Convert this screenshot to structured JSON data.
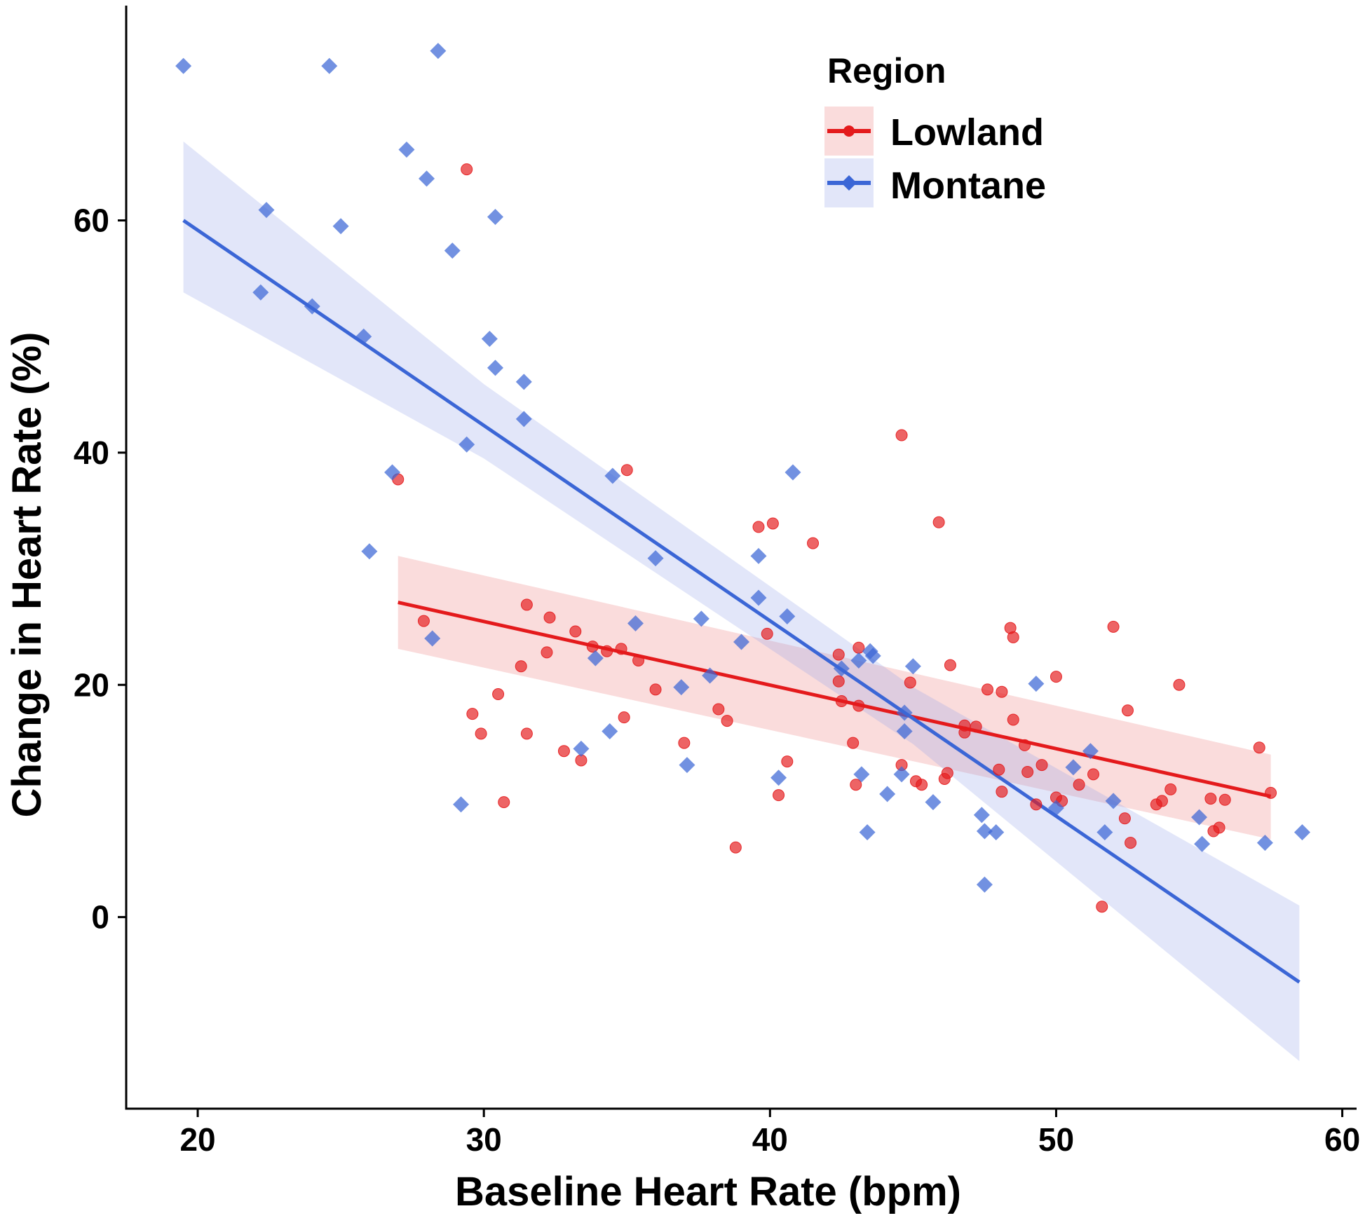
{
  "chart_data": {
    "type": "scatter",
    "title": "",
    "xlabel": "Baseline Heart Rate (bpm)",
    "ylabel": "Change in Heart Rate (%)",
    "xlim": [
      17.5,
      60.5
    ],
    "ylim": [
      -16.5,
      78.5
    ],
    "xticks": [
      20,
      30,
      40,
      50,
      60
    ],
    "yticks": [
      0,
      20,
      40,
      60
    ],
    "grid": false,
    "legend": {
      "title": "Region",
      "position": "top-right"
    },
    "series": [
      {
        "name": "Lowland",
        "color": "#E41A1C",
        "marker": "circle",
        "fit": {
          "x": [
            27.0,
            57.5
          ],
          "y": [
            27.1,
            10.4
          ]
        },
        "band": {
          "x": [
            27.0,
            57.5
          ],
          "lower": [
            23.1,
            6.7
          ],
          "upper": [
            31.1,
            14.0
          ]
        },
        "points": [
          [
            27.0,
            37.7
          ],
          [
            27.9,
            25.5
          ],
          [
            29.4,
            64.4
          ],
          [
            29.6,
            17.5
          ],
          [
            29.9,
            15.8
          ],
          [
            30.5,
            19.2
          ],
          [
            30.7,
            9.9
          ],
          [
            31.3,
            21.6
          ],
          [
            31.5,
            26.9
          ],
          [
            31.5,
            15.8
          ],
          [
            32.2,
            22.8
          ],
          [
            32.3,
            25.8
          ],
          [
            32.8,
            14.3
          ],
          [
            33.2,
            24.6
          ],
          [
            33.4,
            13.5
          ],
          [
            33.8,
            23.3
          ],
          [
            34.3,
            22.9
          ],
          [
            34.8,
            23.1
          ],
          [
            34.9,
            17.2
          ],
          [
            35.0,
            38.5
          ],
          [
            35.4,
            22.1
          ],
          [
            36.0,
            19.6
          ],
          [
            37.0,
            15.0
          ],
          [
            38.2,
            17.9
          ],
          [
            38.5,
            16.9
          ],
          [
            38.8,
            6.0
          ],
          [
            39.6,
            33.6
          ],
          [
            39.9,
            24.4
          ],
          [
            40.1,
            33.9
          ],
          [
            40.3,
            10.5
          ],
          [
            40.6,
            13.4
          ],
          [
            41.5,
            32.2
          ],
          [
            42.4,
            22.6
          ],
          [
            42.4,
            20.3
          ],
          [
            42.5,
            18.6
          ],
          [
            42.9,
            15.0
          ],
          [
            43.0,
            11.4
          ],
          [
            43.1,
            23.2
          ],
          [
            43.1,
            18.2
          ],
          [
            44.6,
            41.5
          ],
          [
            44.6,
            13.1
          ],
          [
            44.9,
            20.2
          ],
          [
            45.1,
            11.7
          ],
          [
            45.3,
            11.4
          ],
          [
            45.9,
            34.0
          ],
          [
            46.1,
            11.9
          ],
          [
            46.2,
            12.4
          ],
          [
            46.3,
            21.7
          ],
          [
            46.8,
            16.5
          ],
          [
            46.8,
            15.9
          ],
          [
            47.2,
            16.4
          ],
          [
            47.6,
            19.6
          ],
          [
            48.0,
            12.7
          ],
          [
            48.1,
            19.4
          ],
          [
            48.1,
            10.8
          ],
          [
            48.4,
            24.9
          ],
          [
            48.5,
            24.1
          ],
          [
            48.5,
            17.0
          ],
          [
            48.9,
            14.8
          ],
          [
            49.0,
            12.5
          ],
          [
            49.3,
            9.7
          ],
          [
            49.5,
            13.1
          ],
          [
            50.0,
            20.7
          ],
          [
            50.0,
            10.3
          ],
          [
            50.2,
            10.0
          ],
          [
            50.8,
            11.4
          ],
          [
            51.3,
            12.3
          ],
          [
            51.6,
            0.9
          ],
          [
            52.0,
            25.0
          ],
          [
            52.4,
            8.5
          ],
          [
            52.5,
            17.8
          ],
          [
            52.6,
            6.4
          ],
          [
            53.5,
            9.7
          ],
          [
            53.7,
            10.0
          ],
          [
            54.0,
            11.0
          ],
          [
            54.3,
            20.0
          ],
          [
            55.4,
            10.2
          ],
          [
            55.5,
            7.4
          ],
          [
            55.7,
            7.7
          ],
          [
            55.9,
            10.1
          ],
          [
            57.1,
            14.6
          ],
          [
            57.5,
            10.7
          ]
        ]
      },
      {
        "name": "Montane",
        "color": "#3B66D6",
        "marker": "diamond",
        "fit": {
          "x": [
            19.5,
            58.5
          ],
          "y": [
            60.0,
            -5.6
          ]
        },
        "band": {
          "x": [
            19.5,
            30.0,
            45.0,
            58.5
          ],
          "lower": [
            53.8,
            39.5,
            14.9,
            -12.4
          ],
          "upper": [
            66.8,
            45.9,
            19.8,
            1.0
          ]
        },
        "points": [
          [
            19.5,
            73.3
          ],
          [
            22.2,
            53.8
          ],
          [
            22.4,
            60.9
          ],
          [
            24.0,
            52.6
          ],
          [
            24.6,
            73.3
          ],
          [
            25.0,
            59.5
          ],
          [
            25.8,
            50.0
          ],
          [
            26.0,
            31.5
          ],
          [
            26.8,
            38.3
          ],
          [
            27.3,
            66.1
          ],
          [
            28.0,
            63.6
          ],
          [
            28.2,
            24.0
          ],
          [
            28.4,
            74.6
          ],
          [
            28.9,
            57.4
          ],
          [
            29.2,
            9.7
          ],
          [
            29.4,
            40.7
          ],
          [
            30.2,
            49.8
          ],
          [
            30.4,
            47.3
          ],
          [
            30.4,
            60.3
          ],
          [
            31.4,
            46.1
          ],
          [
            31.4,
            42.9
          ],
          [
            33.4,
            14.5
          ],
          [
            33.9,
            22.3
          ],
          [
            34.4,
            16.0
          ],
          [
            34.5,
            38.0
          ],
          [
            35.3,
            25.3
          ],
          [
            36.0,
            30.9
          ],
          [
            36.9,
            19.8
          ],
          [
            37.1,
            13.1
          ],
          [
            37.6,
            25.7
          ],
          [
            37.9,
            20.8
          ],
          [
            39.0,
            23.7
          ],
          [
            39.6,
            31.1
          ],
          [
            39.6,
            27.5
          ],
          [
            40.3,
            12.0
          ],
          [
            40.6,
            25.9
          ],
          [
            40.8,
            38.3
          ],
          [
            42.5,
            21.4
          ],
          [
            43.1,
            22.1
          ],
          [
            43.2,
            12.3
          ],
          [
            43.4,
            7.3
          ],
          [
            43.5,
            22.9
          ],
          [
            43.6,
            22.5
          ],
          [
            44.1,
            10.6
          ],
          [
            44.6,
            12.3
          ],
          [
            44.7,
            17.6
          ],
          [
            44.7,
            16.0
          ],
          [
            45.0,
            21.6
          ],
          [
            45.7,
            9.9
          ],
          [
            47.4,
            8.8
          ],
          [
            47.5,
            7.4
          ],
          [
            47.5,
            2.8
          ],
          [
            47.9,
            7.3
          ],
          [
            49.3,
            20.1
          ],
          [
            50.0,
            9.4
          ],
          [
            50.6,
            12.9
          ],
          [
            51.2,
            14.3
          ],
          [
            51.7,
            7.3
          ],
          [
            52.0,
            10.0
          ],
          [
            55.0,
            8.6
          ],
          [
            55.1,
            6.3
          ],
          [
            57.3,
            6.4
          ],
          [
            58.6,
            7.3
          ]
        ]
      }
    ]
  }
}
